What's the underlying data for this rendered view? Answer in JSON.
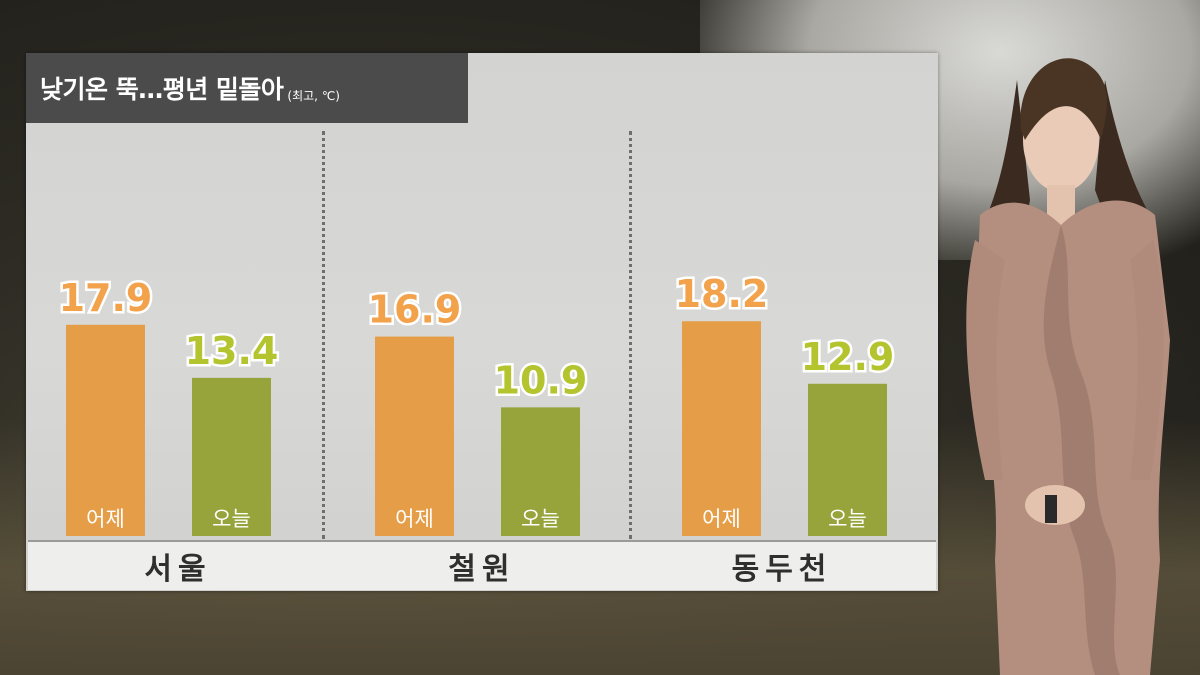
{
  "title": "낮기온 뚝…평년 밑돌아",
  "subtitle": "(최고, ℃)",
  "colors": {
    "yesterday": "#e59e47",
    "today": "#97a33b",
    "yesterday_label": "#f3a24c",
    "today_label": "#b4c42e"
  },
  "chart_data": {
    "type": "bar",
    "categories": [
      "서울",
      "철원",
      "동두천"
    ],
    "series": [
      {
        "name": "어제",
        "values": [
          17.9,
          16.9,
          18.2
        ],
        "labels": [
          "17.9",
          "16.9",
          "18.2"
        ]
      },
      {
        "name": "오늘",
        "values": [
          13.4,
          10.9,
          12.9
        ],
        "labels": [
          "13.4",
          "10.9",
          "12.9"
        ]
      }
    ],
    "title": "낮기온 뚝…평년 밑돌아",
    "ylabel": "",
    "ylim": [
      0,
      24
    ]
  }
}
